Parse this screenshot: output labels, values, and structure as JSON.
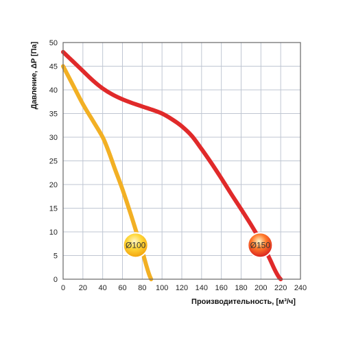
{
  "chart_data": {
    "type": "line",
    "xlabel": "Производительность,  [м³/ч]",
    "ylabel": "Давление, ΔP [Па]",
    "xlim": [
      0,
      240
    ],
    "ylim": [
      0,
      50
    ],
    "x_ticks": [
      0,
      20,
      40,
      60,
      80,
      100,
      120,
      140,
      160,
      180,
      200,
      220,
      240
    ],
    "y_ticks": [
      0,
      5,
      10,
      15,
      20,
      25,
      30,
      35,
      40,
      45,
      50
    ],
    "grid": true,
    "series": [
      {
        "name": "Ø100",
        "color": "#f2b024",
        "x": [
          0,
          10,
          20,
          30,
          40,
          46,
          52,
          60,
          68,
          74,
          80,
          84,
          87,
          89
        ],
        "y": [
          45,
          41,
          37,
          33.5,
          30,
          27,
          23.5,
          19,
          14,
          10,
          6,
          3,
          1,
          0
        ]
      },
      {
        "name": "Ø150",
        "color": "#e02a2a",
        "x": [
          0,
          10,
          20,
          30,
          40,
          50,
          60,
          70,
          80,
          90,
          100,
          110,
          120,
          130,
          140,
          150,
          160,
          170,
          180,
          190,
          200,
          205,
          210,
          214,
          218,
          220
        ],
        "y": [
          48,
          46,
          44,
          42,
          40.3,
          39,
          38,
          37.2,
          36.5,
          35.8,
          35,
          33.8,
          32.3,
          30.3,
          27.5,
          24.5,
          21.3,
          18,
          14.8,
          11.5,
          8,
          6,
          3.8,
          2,
          0.5,
          0
        ]
      }
    ]
  },
  "colors": {
    "plot_border": "#666666",
    "grid": "#bfc6d2",
    "badge_ring": "#ffffff"
  }
}
